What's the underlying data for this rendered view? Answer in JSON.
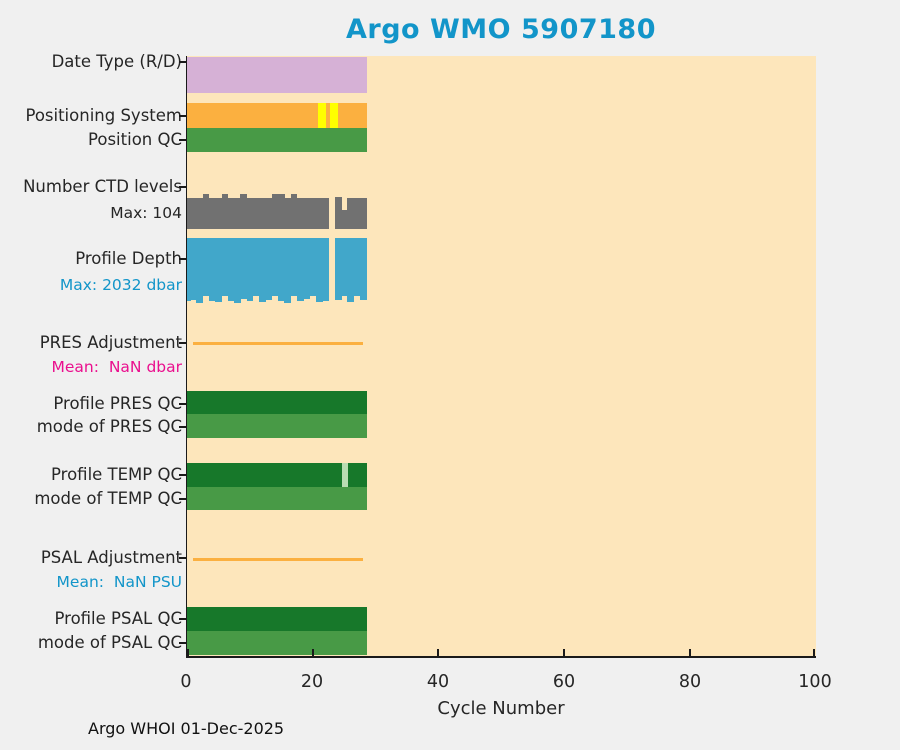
{
  "title": "Argo WMO 5907180",
  "footer": {
    "text": "Argo WHOI 01-Dec-2025"
  },
  "palette": {
    "plum": "#d6b1d6",
    "orange": "#fbb040",
    "yellow": "#ffff00",
    "green": "#489a46",
    "dark_green": "#17782a",
    "pale_green": "#b9dcb2",
    "gray": "#717171",
    "blue_bar": "#41a7ca",
    "title_blue": "#1295c9",
    "label_blue": "#1295c9",
    "magenta": "#ea0f8e",
    "text": "#262626",
    "plot_bg": "#fde6bb",
    "fig_bg": "#f0f0f0",
    "axis": "#1a1a1a"
  },
  "chart_data": {
    "type": "bar",
    "title": "Argo WMO 5907180",
    "xlabel": "Cycle Number",
    "xlim": [
      0,
      100
    ],
    "xticks": [
      0,
      20,
      40,
      60,
      80,
      100
    ],
    "xtick_labels": [
      "0",
      "20",
      "40",
      "60",
      "80",
      "100"
    ],
    "cycles_shown": "0-28 of x-range 0-100",
    "grid": false,
    "legend": "none",
    "rows": [
      {
        "id": "date_type",
        "label": "Date Type (R/D)",
        "type": "segments",
        "segments": [
          {
            "from": 0,
            "to": 28.6,
            "color": "plum"
          }
        ]
      },
      {
        "id": "positioning_system",
        "label": "Positioning System",
        "type": "segments",
        "segments": [
          {
            "from": 0,
            "to": 20.8,
            "color": "orange"
          },
          {
            "from": 20.8,
            "to": 22.1,
            "color": "yellow"
          },
          {
            "from": 22.1,
            "to": 22.7,
            "color": "orange"
          },
          {
            "from": 22.7,
            "to": 24.0,
            "color": "yellow"
          },
          {
            "from": 24.0,
            "to": 28.6,
            "color": "orange"
          }
        ]
      },
      {
        "id": "position_qc",
        "label": "Position QC",
        "type": "segments",
        "segments": [
          {
            "from": 0,
            "to": 28.6,
            "color": "green"
          }
        ]
      },
      {
        "id": "num_ctd_levels",
        "label": "Number CTD levels",
        "sublabel": "Max: 104",
        "sublabel_color": "text",
        "type": "histogram_up",
        "color": "gray",
        "max": 104,
        "values": [
          92,
          92,
          92,
          104,
          92,
          92,
          104,
          92,
          92,
          104,
          92,
          92,
          92,
          92,
          104,
          104,
          92,
          104,
          92,
          92,
          92,
          92,
          92,
          0,
          96,
          56,
          92,
          92,
          92
        ]
      },
      {
        "id": "profile_depth",
        "label": "Profile Depth",
        "sublabel": "Max: 2032 dbar",
        "sublabel_color": "label_blue",
        "type": "histogram_down",
        "color": "blue_bar",
        "max": 2032,
        "values": [
          1970,
          1940,
          2032,
          1815,
          1970,
          2000,
          1815,
          1970,
          2032,
          1900,
          1970,
          1815,
          2000,
          1940,
          1815,
          1970,
          2032,
          1815,
          1970,
          1900,
          1815,
          2000,
          1970,
          0,
          1940,
          1815,
          2000,
          1815,
          1940
        ]
      },
      {
        "id": "pres_adjustment",
        "label": "PRES Adjustment",
        "sublabel": "Mean:  NaN dbar",
        "sublabel_color": "magenta",
        "type": "line",
        "color": "orange",
        "from": 1,
        "to": 28,
        "value": 0
      },
      {
        "id": "profile_pres_qc",
        "label": "Profile PRES QC",
        "type": "segments",
        "segments": [
          {
            "from": 0,
            "to": 28.6,
            "color": "dark_green"
          }
        ]
      },
      {
        "id": "mode_pres_qc",
        "label": "mode of PRES QC",
        "type": "segments",
        "segments": [
          {
            "from": 0,
            "to": 28.6,
            "color": "green"
          }
        ]
      },
      {
        "id": "profile_temp_qc",
        "label": "Profile TEMP QC",
        "type": "segments",
        "segments": [
          {
            "from": 0,
            "to": 24.6,
            "color": "dark_green"
          },
          {
            "from": 24.6,
            "to": 25.6,
            "color": "pale_green"
          },
          {
            "from": 25.6,
            "to": 28.6,
            "color": "dark_green"
          }
        ]
      },
      {
        "id": "mode_temp_qc",
        "label": "mode of TEMP QC",
        "type": "segments",
        "segments": [
          {
            "from": 0,
            "to": 28.6,
            "color": "green"
          }
        ]
      },
      {
        "id": "psal_adjustment",
        "label": "PSAL Adjustment",
        "sublabel": "Mean:  NaN PSU",
        "sublabel_color": "label_blue",
        "type": "line",
        "color": "orange",
        "from": 1,
        "to": 28,
        "value": 0
      },
      {
        "id": "profile_psal_qc",
        "label": "Profile PSAL QC",
        "type": "segments",
        "segments": [
          {
            "from": 0,
            "to": 28.6,
            "color": "dark_green"
          }
        ]
      },
      {
        "id": "mode_psal_qc",
        "label": "mode of PSAL QC",
        "type": "segments",
        "segments": [
          {
            "from": 0,
            "to": 28.6,
            "color": "green"
          }
        ]
      }
    ]
  }
}
